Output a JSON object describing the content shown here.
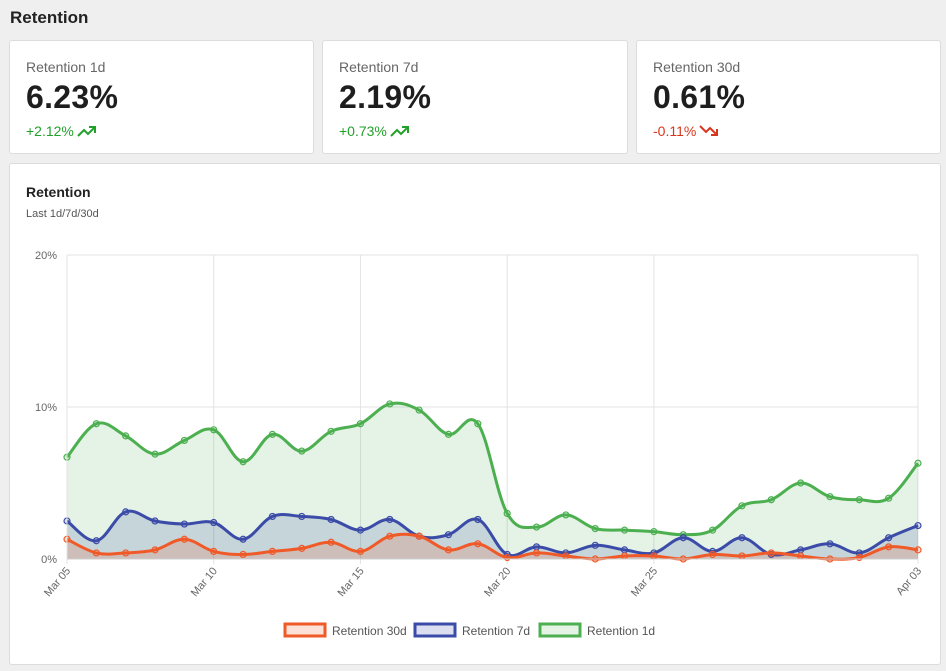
{
  "page": {
    "title": "Retention"
  },
  "stats": [
    {
      "label": "Retention 1d",
      "value": "6.23%",
      "delta": "+2.12%",
      "direction": "up",
      "icon": "trend-up-icon"
    },
    {
      "label": "Retention 7d",
      "value": "2.19%",
      "delta": "+0.73%",
      "direction": "up",
      "icon": "trend-up-icon"
    },
    {
      "label": "Retention 30d",
      "value": "0.61%",
      "delta": "-0.11%",
      "direction": "down",
      "icon": "trend-down-icon"
    }
  ],
  "colors": {
    "up": "#22a12a",
    "down": "#d8361c"
  },
  "chart_data": {
    "type": "area",
    "title": "Retention",
    "subtitle": "Last 1d/7d/30d",
    "y_ticks": [
      "0%",
      "10%",
      "20%"
    ],
    "ylim": [
      0,
      20
    ],
    "x_tick_labels": [
      "Mar 05",
      "Mar 10",
      "Mar 15",
      "Mar 20",
      "Mar 25",
      "Apr 03"
    ],
    "x_tick_dates": [
      "Mar 05",
      "Mar 10",
      "Mar 15",
      "Mar 20",
      "Mar 25",
      "Apr 03"
    ],
    "x": [
      "Mar 05",
      "Mar 06",
      "Mar 07",
      "Mar 08",
      "Mar 09",
      "Mar 10",
      "Mar 11",
      "Mar 12",
      "Mar 13",
      "Mar 14",
      "Mar 15",
      "Mar 16",
      "Mar 17",
      "Mar 18",
      "Mar 19",
      "Mar 20",
      "Mar 21",
      "Mar 22",
      "Mar 23",
      "Mar 24",
      "Mar 25",
      "Mar 26",
      "Mar 27",
      "Mar 28",
      "Mar 29",
      "Mar 30",
      "Mar 31",
      "Apr 01",
      "Apr 02",
      "Apr 03"
    ],
    "grid": true,
    "legend_position": "bottom",
    "series": [
      {
        "name": "Retention 30d",
        "color": "#f05a28",
        "fill": "rgba(240,90,40,0.18)",
        "values": [
          1.3,
          0.4,
          0.4,
          0.6,
          1.3,
          0.5,
          0.3,
          0.5,
          0.7,
          1.1,
          0.5,
          1.5,
          1.5,
          0.6,
          1.0,
          0.1,
          0.4,
          0.2,
          0.0,
          0.2,
          0.2,
          0.0,
          0.3,
          0.2,
          0.4,
          0.2,
          0.0,
          0.1,
          0.8,
          0.6
        ]
      },
      {
        "name": "Retention 7d",
        "color": "#3b4ba8",
        "fill": "rgba(59,75,168,0.18)",
        "values": [
          2.5,
          1.2,
          3.1,
          2.5,
          2.3,
          2.4,
          1.3,
          2.8,
          2.8,
          2.6,
          1.9,
          2.6,
          1.5,
          1.6,
          2.6,
          0.3,
          0.8,
          0.4,
          0.9,
          0.6,
          0.4,
          1.4,
          0.5,
          1.4,
          0.3,
          0.6,
          1.0,
          0.4,
          1.4,
          2.2
        ]
      },
      {
        "name": "Retention 1d",
        "color": "#4caf50",
        "fill": "rgba(76,175,80,0.15)",
        "values": [
          6.7,
          8.9,
          8.1,
          6.9,
          7.8,
          8.5,
          6.4,
          8.2,
          7.1,
          8.4,
          8.9,
          10.2,
          9.8,
          8.2,
          8.9,
          3.0,
          2.1,
          2.9,
          2.0,
          1.9,
          1.8,
          1.6,
          1.9,
          3.5,
          3.9,
          5.0,
          4.1,
          3.9,
          4.0,
          6.3
        ]
      }
    ]
  }
}
